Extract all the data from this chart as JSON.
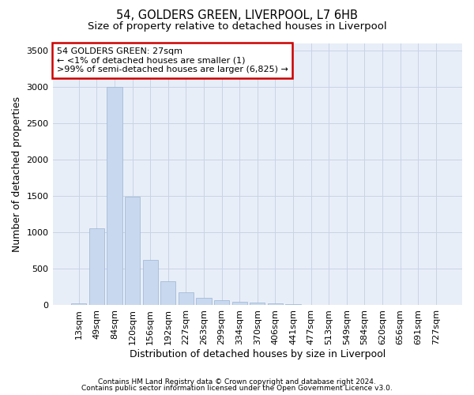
{
  "title1": "54, GOLDERS GREEN, LIVERPOOL, L7 6HB",
  "title2": "Size of property relative to detached houses in Liverpool",
  "xlabel": "Distribution of detached houses by size in Liverpool",
  "ylabel": "Number of detached properties",
  "categories": [
    "13sqm",
    "49sqm",
    "84sqm",
    "120sqm",
    "156sqm",
    "192sqm",
    "227sqm",
    "263sqm",
    "299sqm",
    "334sqm",
    "370sqm",
    "406sqm",
    "441sqm",
    "477sqm",
    "513sqm",
    "549sqm",
    "584sqm",
    "620sqm",
    "656sqm",
    "691sqm",
    "727sqm"
  ],
  "values": [
    30,
    1060,
    3000,
    1490,
    620,
    330,
    175,
    105,
    70,
    50,
    35,
    22,
    15,
    8,
    5,
    3,
    2,
    1,
    1,
    1,
    1
  ],
  "bar_color": "#c8d8ee",
  "bar_edge_color": "#9ab4d4",
  "annotation_text": "54 GOLDERS GREEN: 27sqm\n← <1% of detached houses are smaller (1)\n>99% of semi-detached houses are larger (6,825) →",
  "annotation_box_color": "#ffffff",
  "annotation_box_edge": "#cc0000",
  "grid_color": "#c8d4e4",
  "background_color": "#e8eef8",
  "ylim": [
    0,
    3600
  ],
  "yticks": [
    0,
    500,
    1000,
    1500,
    2000,
    2500,
    3000,
    3500
  ],
  "footer1": "Contains HM Land Registry data © Crown copyright and database right 2024.",
  "footer2": "Contains public sector information licensed under the Open Government Licence v3.0.",
  "title_fontsize": 10.5,
  "subtitle_fontsize": 9.5,
  "tick_fontsize": 8,
  "label_fontsize": 9,
  "annot_fontsize": 8
}
